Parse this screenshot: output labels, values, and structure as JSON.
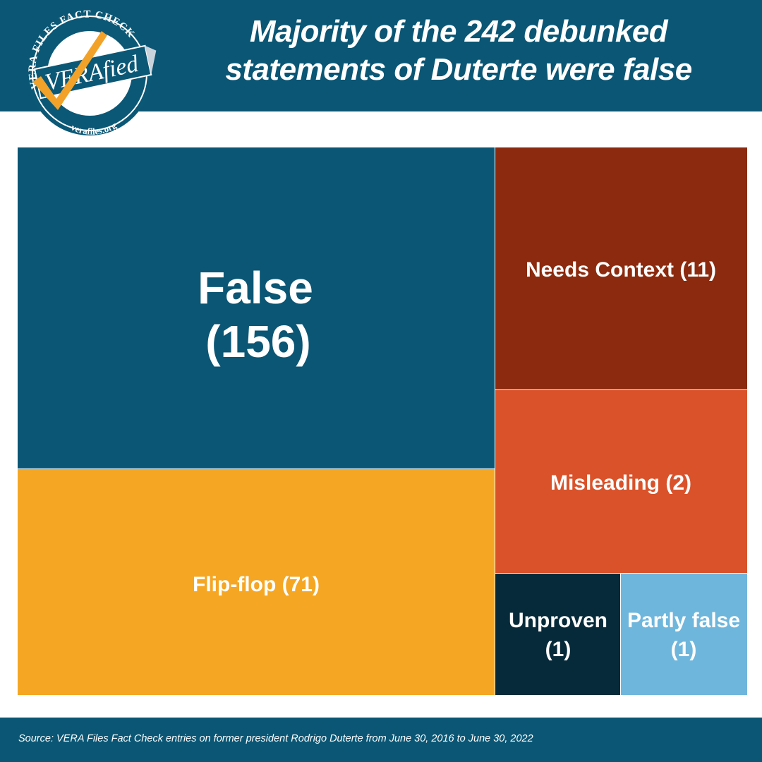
{
  "header": {
    "title_line1": "Majority of the 242 debunked",
    "title_line2": "statements of Duterte were false"
  },
  "logo": {
    "arc_text": "VERA FILES FACT CHECK",
    "brand": "VERAfied",
    "site": "verafiles.org",
    "icon": "checkmark-icon"
  },
  "chart_data": {
    "type": "treemap",
    "title": "Majority of the 242 debunked statements of Duterte were false",
    "total": 242,
    "items": [
      {
        "label": "False",
        "value": 156,
        "color": "#0a5674"
      },
      {
        "label": "Flip-flop",
        "value": 71,
        "color": "#f5a623"
      },
      {
        "label": "Needs Context",
        "value": 11,
        "color": "#8b2a0e"
      },
      {
        "label": "Misleading",
        "value": 2,
        "color": "#d9522a"
      },
      {
        "label": "Unproven",
        "value": 1,
        "color": "#062a3a"
      },
      {
        "label": "Partly false",
        "value": 1,
        "color": "#6fb6dc"
      }
    ]
  },
  "footer": {
    "source": "Source: VERA Files Fact Check entries on former president Rodrigo Duterte from June 30, 2016 to June 30, 2022"
  }
}
